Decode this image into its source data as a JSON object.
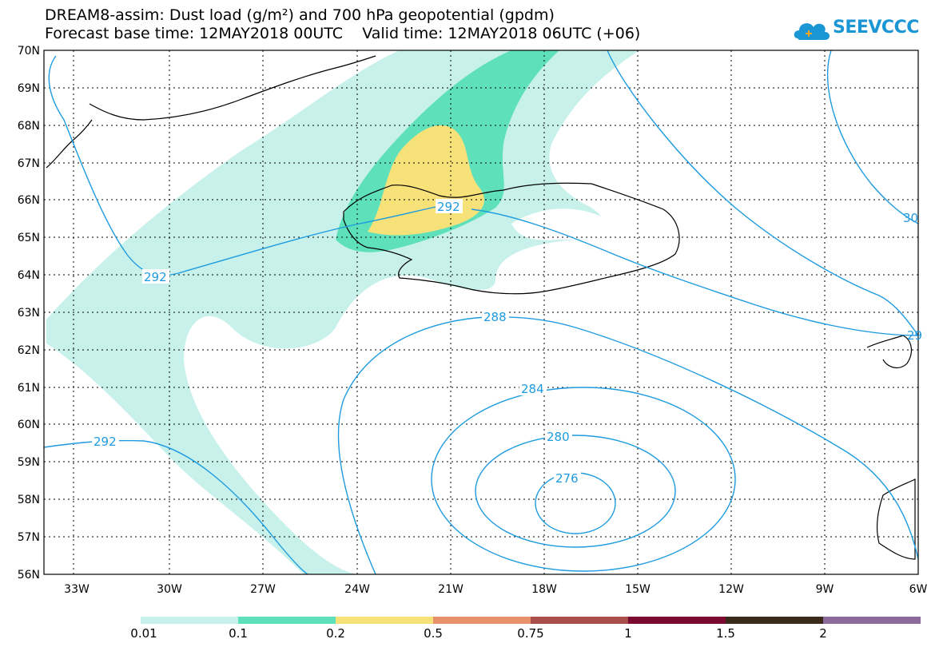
{
  "header": {
    "title": "DREAM8-assim: Dust load (g/m²) and 700 hPa geopotential (gpdm)",
    "subtitle": "Forecast base time: 12MAY2018 00UTC    Valid time: 12MAY2018 06UTC (+06)"
  },
  "logo": {
    "text": "SEEVCCC",
    "icon": "cloud-icon",
    "color": "#1b96d4"
  },
  "map": {
    "lat_labels": [
      "70N",
      "69N",
      "68N",
      "67N",
      "66N",
      "65N",
      "64N",
      "63N",
      "62N",
      "61N",
      "60N",
      "59N",
      "58N",
      "57N",
      "56N"
    ],
    "lon_labels": [
      "33W",
      "30W",
      "27W",
      "24W",
      "21W",
      "18W",
      "15W",
      "12W",
      "9W",
      "6W"
    ],
    "contour_labels": [
      "292",
      "292",
      "292",
      "288",
      "284",
      "280",
      "276",
      "30",
      "29"
    ],
    "contour_color": "#1e9be0",
    "coastline_color": "#000000"
  },
  "colorbar": {
    "colors": [
      "#c7f1ea",
      "#5ee0bb",
      "#f7e27a",
      "#e8906a",
      "#a94f4b",
      "#7b0a31",
      "#3a2a1b",
      "#8c6b9c"
    ],
    "labels": [
      "0.01",
      "0.1",
      "0.2",
      "0.5",
      "0.75",
      "1",
      "1.5",
      "2"
    ]
  }
}
